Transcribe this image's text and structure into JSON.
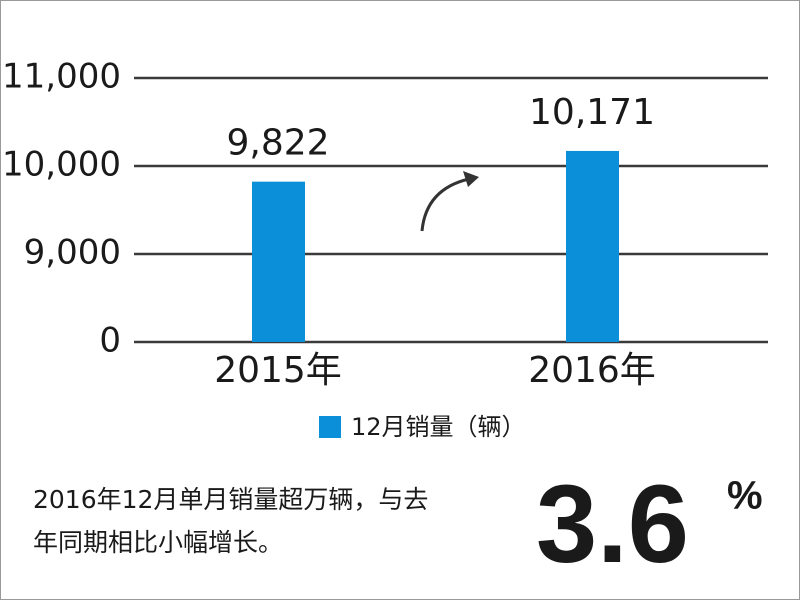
{
  "chart_data": {
    "type": "bar",
    "categories": [
      "2015年",
      "2016年"
    ],
    "series": [
      {
        "name": "12月销量（辆）",
        "color": "#0a8fd8",
        "values": [
          9822,
          10171
        ],
        "value_labels": [
          "9,822",
          "10,171"
        ]
      }
    ],
    "ylim": [
      0,
      11000
    ],
    "yticks": [
      0,
      {
        "value": 9000,
        "label": "9,000"
      },
      {
        "value": 10000,
        "label": "10,000"
      },
      {
        "value": 11000,
        "label": "11,000"
      }
    ],
    "grid": true,
    "legend": "bottom"
  },
  "annotation": {
    "lines": [
      "2016年12月单月销量超万辆，与去",
      "年同期相比小幅增长。"
    ],
    "highlight": "3.6",
    "highlight_unit": "%"
  }
}
